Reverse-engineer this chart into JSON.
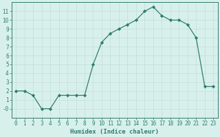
{
  "xlabel": "Humidex (Indice chaleur)",
  "x": [
    0,
    1,
    2,
    3,
    4,
    5,
    6,
    7,
    8,
    9,
    10,
    11,
    12,
    13,
    14,
    15,
    16,
    17,
    18,
    19,
    20,
    21,
    22,
    23
  ],
  "y": [
    2,
    2,
    1.5,
    0,
    0,
    1.5,
    1.5,
    1.5,
    1.5,
    5,
    7.5,
    8.5,
    9,
    9.5,
    10,
    11,
    11.5,
    10.5,
    10,
    10,
    9.5,
    8,
    2.5,
    2.5
  ],
  "line_color": "#2e7d6e",
  "marker_color": "#2e7d6e",
  "bg_color": "#d8f0ec",
  "grid_major_color": "#c4ddd8",
  "grid_minor_color": "#e0f0ed",
  "tick_color": "#2e7d6e",
  "spine_color": "#2e7d6e",
  "ylim": [
    -1,
    12
  ],
  "xlim": [
    -0.5,
    23.5
  ],
  "yticks": [
    0,
    1,
    2,
    3,
    4,
    5,
    6,
    7,
    8,
    9,
    10,
    11
  ],
  "ytick_labels": [
    "-0",
    "1",
    "2",
    "3",
    "4",
    "5",
    "6",
    "7",
    "8",
    "9",
    "10",
    "11"
  ],
  "xticks": [
    0,
    1,
    2,
    3,
    4,
    5,
    6,
    7,
    8,
    9,
    10,
    11,
    12,
    13,
    14,
    15,
    16,
    17,
    18,
    19,
    20,
    21,
    22,
    23
  ],
  "tick_fontsize": 5.5,
  "xlabel_fontsize": 6.5
}
